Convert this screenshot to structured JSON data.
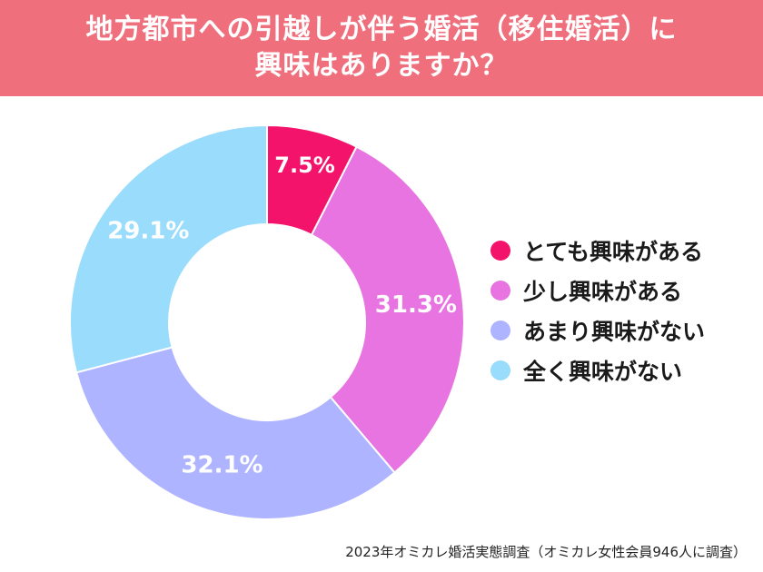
{
  "title": {
    "line1": "地方都市への引越しが伴う婚活（移住婚活）に",
    "line2": "興味はありますか？"
  },
  "chart_data": {
    "type": "pie",
    "categories": [
      "とても興味がある",
      "少し興味がある",
      "あまり興味がない",
      "全く興味がない"
    ],
    "values": [
      7.5,
      31.3,
      32.1,
      29.1
    ],
    "labels": [
      "7.5%",
      "31.3%",
      "32.1%",
      "29.1%"
    ],
    "colors": [
      "#f4136b",
      "#e774e0",
      "#aeb4ff",
      "#99dcfb"
    ],
    "donut": true,
    "legend_position": "right"
  },
  "footer": {
    "source": "2023年オミカレ婚活実態調査（オミカレ女性会員946人に調査）"
  }
}
